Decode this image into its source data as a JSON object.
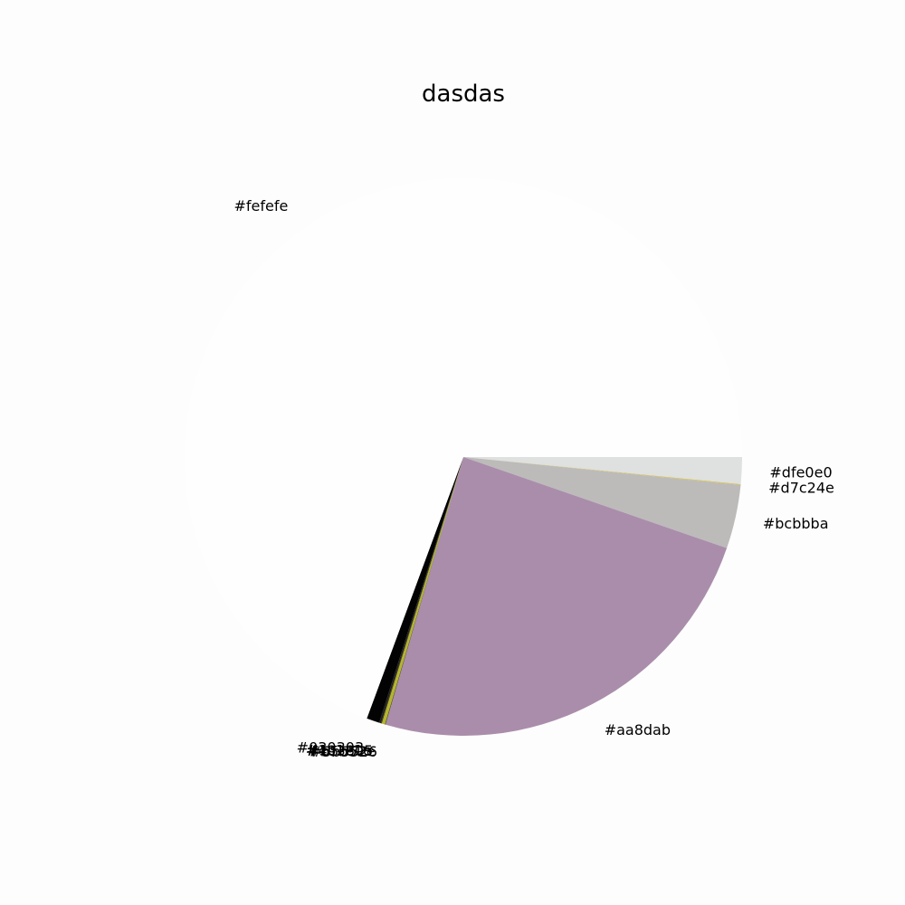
{
  "chart_data": {
    "type": "pie",
    "title": "dasdas",
    "slices": [
      {
        "label": "#dfe0e0",
        "value": 1.55,
        "color": "#dfe0e0"
      },
      {
        "label": "#d7c24e",
        "value": 0.05,
        "color": "#d7c24e"
      },
      {
        "label": "#bcbbba",
        "value": 3.7,
        "color": "#bcbbba"
      },
      {
        "label": "#aa8dab",
        "value": 24.2,
        "color": "#aa8dab"
      },
      {
        "label": "#5b5526",
        "value": 0.05,
        "color": "#5b5526"
      },
      {
        "label": "#b5b52e",
        "value": 0.18,
        "color": "#b5b52e"
      },
      {
        "label": "#403805",
        "value": 0.05,
        "color": "#403805"
      },
      {
        "label": "#1c1e1e",
        "value": 0.1,
        "color": "#1c1e1e"
      },
      {
        "label": "#030303",
        "value": 0.75,
        "color": "#030303"
      },
      {
        "label": "#fefefe",
        "value": 69.37,
        "color": "#fefefe"
      }
    ]
  }
}
